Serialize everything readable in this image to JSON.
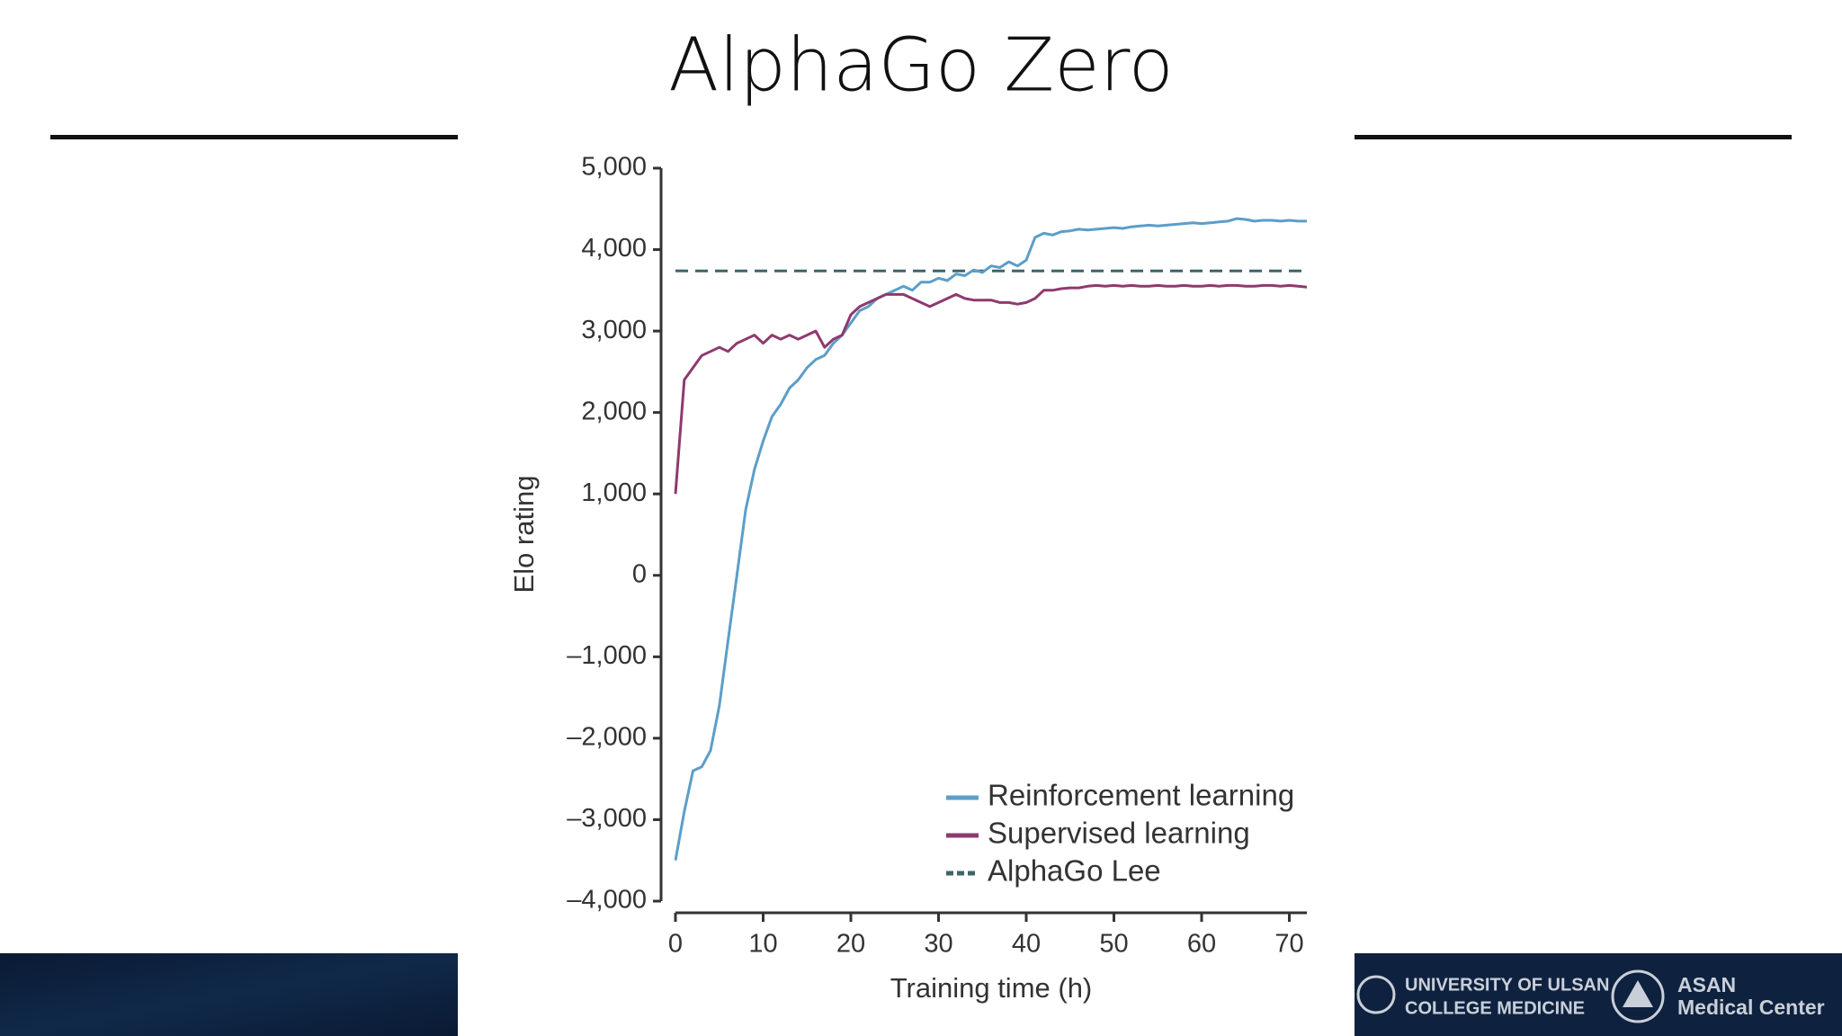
{
  "slide": {
    "title": "AlphaGo Zero",
    "footer": {
      "logo1_line1": "UNIVERSITY OF ULSAN",
      "logo1_line2": "COLLEGE MEDICINE",
      "logo2_line1": "ASAN",
      "logo2_line2": "Medical Center"
    }
  },
  "chart_data": {
    "type": "line",
    "xlabel": "Training time (h)",
    "ylabel": "Elo rating",
    "x": [
      0,
      1,
      2,
      3,
      4,
      5,
      6,
      7,
      8,
      9,
      10,
      11,
      12,
      13,
      14,
      15,
      16,
      17,
      18,
      19,
      20,
      21,
      22,
      23,
      24,
      25,
      26,
      27,
      28,
      29,
      30,
      31,
      32,
      33,
      34,
      35,
      36,
      37,
      38,
      39,
      40,
      41,
      42,
      43,
      44,
      45,
      46,
      47,
      48,
      49,
      50,
      51,
      52,
      53,
      54,
      55,
      56,
      57,
      58,
      59,
      60,
      61,
      62,
      63,
      64,
      65,
      66,
      67,
      68,
      69,
      70,
      71,
      72
    ],
    "series": [
      {
        "name": "Reinforcement learning",
        "color": "#5b9ec9",
        "values": [
          -3500,
          -2900,
          -2400,
          -2350,
          -2150,
          -1600,
          -800,
          0,
          800,
          1300,
          1650,
          1950,
          2100,
          2300,
          2400,
          2550,
          2650,
          2700,
          2850,
          2950,
          3100,
          3250,
          3300,
          3400,
          3450,
          3500,
          3550,
          3500,
          3600,
          3600,
          3650,
          3620,
          3700,
          3680,
          3750,
          3720,
          3800,
          3780,
          3850,
          3800,
          3870,
          4150,
          4200,
          4180,
          4220,
          4230,
          4250,
          4240,
          4250,
          4260,
          4270,
          4260,
          4280,
          4290,
          4300,
          4290,
          4300,
          4310,
          4320,
          4330,
          4320,
          4330,
          4340,
          4350,
          4380,
          4370,
          4350,
          4360,
          4360,
          4350,
          4360,
          4350,
          4350
        ]
      },
      {
        "name": "Supervised learning",
        "color": "#8e3a6e",
        "values": [
          1000,
          2400,
          2550,
          2700,
          2750,
          2800,
          2750,
          2850,
          2900,
          2950,
          2850,
          2950,
          2900,
          2950,
          2900,
          2950,
          3000,
          2800,
          2900,
          2950,
          3200,
          3300,
          3350,
          3400,
          3450,
          3450,
          3450,
          3400,
          3350,
          3300,
          3350,
          3400,
          3450,
          3400,
          3380,
          3380,
          3380,
          3350,
          3350,
          3330,
          3350,
          3400,
          3500,
          3500,
          3520,
          3530,
          3530,
          3550,
          3560,
          3550,
          3560,
          3550,
          3560,
          3550,
          3550,
          3560,
          3550,
          3550,
          3560,
          3550,
          3550,
          3560,
          3550,
          3560,
          3560,
          3550,
          3550,
          3560,
          3560,
          3550,
          3560,
          3550,
          3540
        ]
      }
    ],
    "reference_line": {
      "name": "AlphaGo Lee",
      "value": 3739,
      "color": "#3f6468",
      "dashed": true
    },
    "xlim": [
      0,
      72
    ],
    "ylim": [
      -4000,
      5000
    ],
    "xticks": [
      0,
      10,
      20,
      30,
      40,
      50,
      60,
      70
    ],
    "yticks": [
      {
        "value": -4000,
        "label": "–4,000"
      },
      {
        "value": -3000,
        "label": "–3,000"
      },
      {
        "value": -2000,
        "label": "–2,000"
      },
      {
        "value": -1000,
        "label": "–1,000"
      },
      0,
      {
        "value": 1000,
        "label": "1,000"
      },
      {
        "value": 2000,
        "label": "2,000"
      },
      {
        "value": 3000,
        "label": "3,000"
      },
      {
        "value": 4000,
        "label": "4,000"
      },
      {
        "value": 5000,
        "label": "5,000"
      }
    ],
    "grid": false,
    "legend": "lower right"
  }
}
